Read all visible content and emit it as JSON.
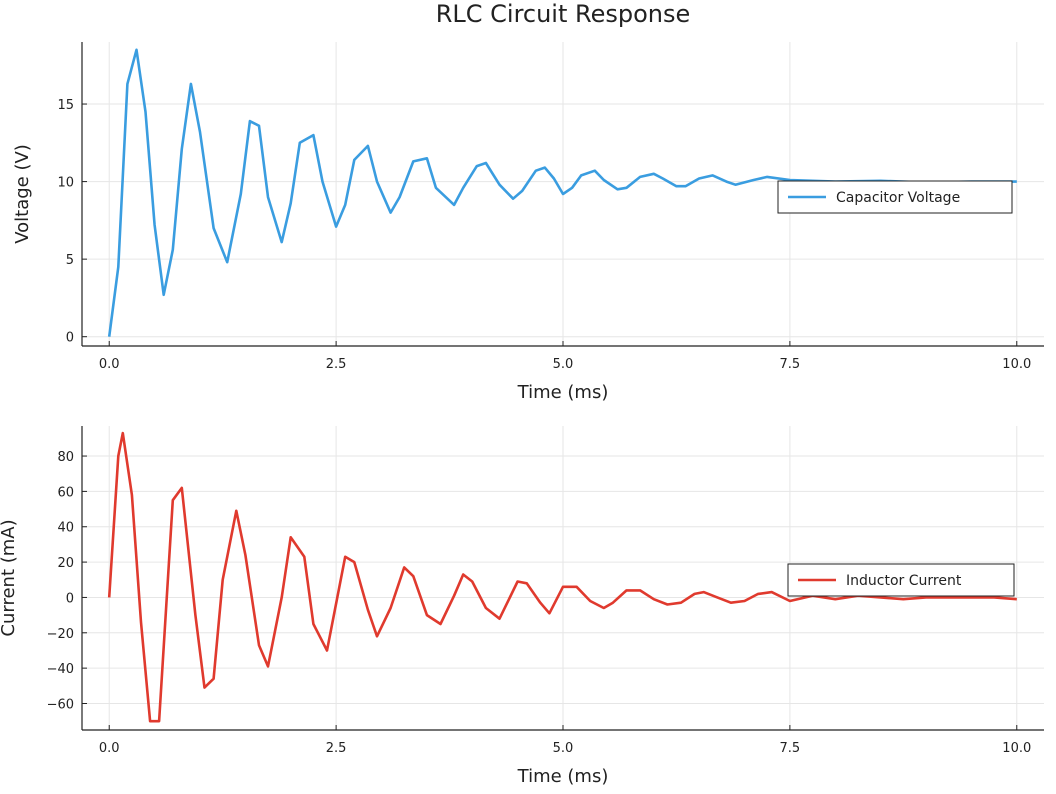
{
  "title": "RLC Circuit Response",
  "chart_data": [
    {
      "type": "line",
      "xlabel": "Time (ms)",
      "ylabel": "Voltage (V)",
      "xlim": [
        -0.3,
        10.3
      ],
      "ylim": [
        -0.6,
        19
      ],
      "xticks": [
        0,
        2.5,
        5,
        7.5,
        10
      ],
      "xtick_labels": [
        "0.0",
        "2.5",
        "5.0",
        "7.5",
        "10.0"
      ],
      "yticks": [
        0,
        5,
        10,
        15
      ],
      "ytick_labels": [
        "0",
        "5",
        "10",
        "15"
      ],
      "grid": true,
      "legend": "right",
      "series": [
        {
          "name": "Capacitor Voltage",
          "color": "#3a9de0",
          "x": [
            0,
            0.1,
            0.2,
            0.3,
            0.4,
            0.5,
            0.6,
            0.7,
            0.8,
            0.9,
            1.0,
            1.15,
            1.3,
            1.45,
            1.55,
            1.65,
            1.75,
            1.9,
            2.0,
            2.1,
            2.25,
            2.35,
            2.5,
            2.6,
            2.7,
            2.85,
            2.95,
            3.1,
            3.2,
            3.35,
            3.5,
            3.6,
            3.8,
            3.9,
            4.05,
            4.15,
            4.3,
            4.45,
            4.55,
            4.7,
            4.8,
            4.9,
            5.0,
            5.1,
            5.2,
            5.35,
            5.45,
            5.6,
            5.7,
            5.85,
            6.0,
            6.1,
            6.25,
            6.35,
            6.5,
            6.65,
            6.8,
            6.9,
            7.1,
            7.25,
            7.5,
            8.0,
            8.5,
            9.0,
            9.5,
            10.0
          ],
          "y": [
            0,
            4.5,
            16.3,
            18.5,
            14.5,
            7.2,
            2.7,
            5.6,
            12.1,
            16.3,
            13.2,
            7.0,
            4.8,
            9.2,
            13.9,
            13.6,
            9.0,
            6.1,
            8.6,
            12.5,
            13.0,
            10.0,
            7.1,
            8.5,
            11.4,
            12.3,
            10.0,
            8.0,
            9.0,
            11.3,
            11.5,
            9.6,
            8.5,
            9.6,
            11.0,
            11.2,
            9.8,
            8.9,
            9.4,
            10.7,
            10.9,
            10.2,
            9.2,
            9.6,
            10.4,
            10.7,
            10.1,
            9.5,
            9.6,
            10.3,
            10.5,
            10.2,
            9.7,
            9.7,
            10.2,
            10.4,
            10.0,
            9.8,
            10.1,
            10.3,
            10.1,
            10.0,
            10.05,
            9.95,
            10.0,
            10.0
          ]
        }
      ]
    },
    {
      "type": "line",
      "xlabel": "Time (ms)",
      "ylabel": "Current (mA)",
      "xlim": [
        -0.3,
        10.3
      ],
      "ylim": [
        -75,
        97
      ],
      "xticks": [
        0,
        2.5,
        5,
        7.5,
        10
      ],
      "xtick_labels": [
        "0.0",
        "2.5",
        "5.0",
        "7.5",
        "10.0"
      ],
      "yticks": [
        -60,
        -40,
        -20,
        0,
        20,
        40,
        60,
        80
      ],
      "ytick_labels": [
        "−60",
        "−40",
        "−20",
        "0",
        "20",
        "40",
        "60",
        "80"
      ],
      "grid": true,
      "legend": "right",
      "series": [
        {
          "name": "Inductor Current",
          "color": "#e03a2e",
          "x": [
            0,
            0.1,
            0.15,
            0.25,
            0.35,
            0.45,
            0.55,
            0.7,
            0.8,
            0.95,
            1.05,
            1.15,
            1.25,
            1.4,
            1.5,
            1.65,
            1.75,
            1.9,
            2.0,
            2.15,
            2.25,
            2.4,
            2.6,
            2.7,
            2.85,
            2.95,
            3.1,
            3.25,
            3.35,
            3.5,
            3.65,
            3.8,
            3.9,
            4.0,
            4.15,
            4.3,
            4.5,
            4.6,
            4.75,
            4.85,
            5.0,
            5.15,
            5.3,
            5.45,
            5.55,
            5.7,
            5.85,
            6.0,
            6.15,
            6.3,
            6.45,
            6.55,
            6.7,
            6.85,
            7.0,
            7.15,
            7.3,
            7.5,
            7.75,
            8.0,
            8.25,
            8.5,
            8.75,
            9.0,
            9.25,
            9.5,
            9.75,
            10.0
          ],
          "y": [
            0,
            80,
            93,
            58,
            -14,
            -70,
            -70,
            55,
            62,
            -10,
            -51,
            -46,
            10,
            49,
            24,
            -27,
            -39,
            0,
            34,
            23,
            -15,
            -30,
            23,
            20,
            -7,
            -22,
            -6,
            17,
            12,
            -10,
            -15,
            1,
            13,
            9,
            -6,
            -12,
            9,
            8,
            -3,
            -9,
            6,
            6,
            -2,
            -6,
            -3,
            4,
            4,
            -1,
            -4,
            -3,
            2,
            3,
            0,
            -3,
            -2,
            2,
            3,
            -2,
            1,
            -1,
            1,
            0,
            -1,
            0,
            0,
            0,
            0,
            -1
          ]
        }
      ]
    }
  ]
}
